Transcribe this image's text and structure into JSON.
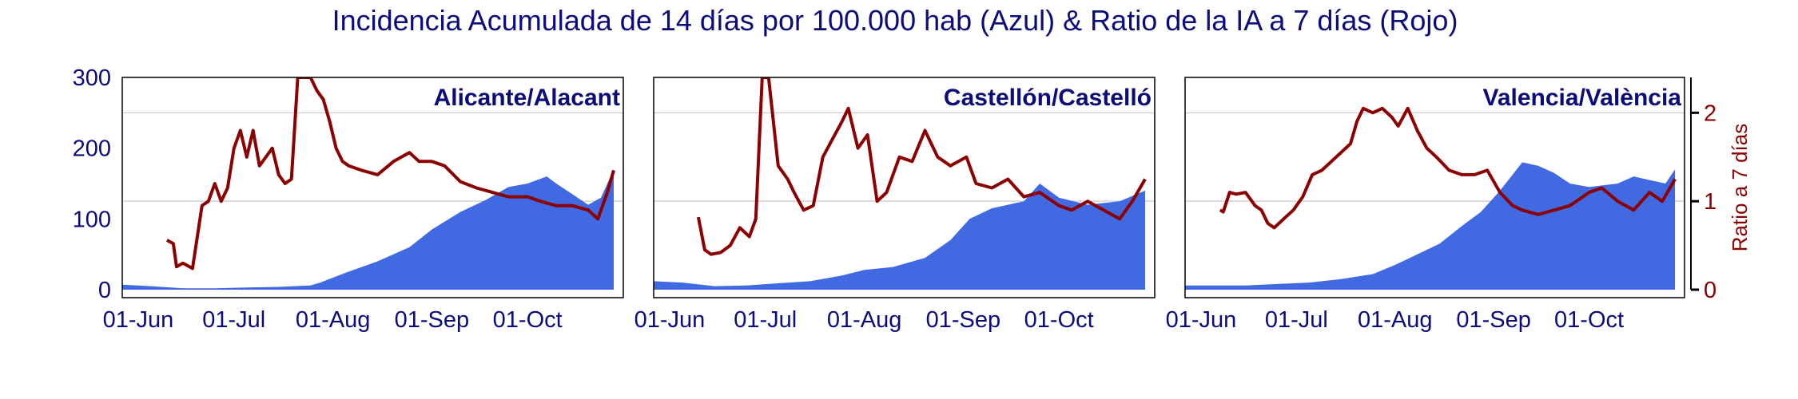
{
  "title": "Incidencia Acumulada de 14 días por 100.000 hab (Azul) & Ratio de la IA a 7 días (Rojo)",
  "colors": {
    "area": "#4169e1",
    "line": "#8b0000",
    "title": "#0b0b7a",
    "grid": "#d3d3d3"
  },
  "x_ticks": [
    "01-Jun",
    "01-Jul",
    "01-Aug",
    "01-Sep",
    "01-Oct"
  ],
  "y_left_ticks": [
    "0",
    "100",
    "200",
    "300"
  ],
  "y_right_ticks": [
    "0",
    "1",
    "2"
  ],
  "y_right_label": "Ratio a 7 días",
  "chart_data": [
    {
      "type": "area+line",
      "panel_title": "Alicante/Alacant",
      "x_range": [
        "2020-05-27",
        "2020-10-31"
      ],
      "ylim_left": [
        0,
        300
      ],
      "ylim_right": [
        0,
        2.4
      ],
      "incidence": {
        "x": [
          "2020-05-27",
          "2020-06-05",
          "2020-06-15",
          "2020-06-25",
          "2020-07-05",
          "2020-07-15",
          "2020-07-25",
          "2020-07-28",
          "2020-08-05",
          "2020-08-15",
          "2020-08-25",
          "2020-09-01",
          "2020-09-10",
          "2020-09-18",
          "2020-09-25",
          "2020-10-01",
          "2020-10-07",
          "2020-10-10",
          "2020-10-15",
          "2020-10-20",
          "2020-10-24",
          "2020-10-28"
        ],
        "values": [
          7,
          5,
          2,
          2,
          3,
          4,
          6,
          10,
          24,
          40,
          60,
          85,
          110,
          127,
          145,
          150,
          160,
          150,
          135,
          120,
          130,
          170
        ]
      },
      "ratio": {
        "x": [
          "2020-06-10",
          "2020-06-12",
          "2020-06-13",
          "2020-06-15",
          "2020-06-18",
          "2020-06-21",
          "2020-06-23",
          "2020-06-25",
          "2020-06-27",
          "2020-06-29",
          "2020-07-01",
          "2020-07-03",
          "2020-07-05",
          "2020-07-07",
          "2020-07-09",
          "2020-07-11",
          "2020-07-13",
          "2020-07-15",
          "2020-07-17",
          "2020-07-19",
          "2020-07-21",
          "2020-07-22",
          "2020-07-25",
          "2020-07-27",
          "2020-07-29",
          "2020-07-31",
          "2020-08-02",
          "2020-08-04",
          "2020-08-06",
          "2020-08-10",
          "2020-08-15",
          "2020-08-20",
          "2020-08-25",
          "2020-08-28",
          "2020-09-01",
          "2020-09-05",
          "2020-09-10",
          "2020-09-15",
          "2020-09-20",
          "2020-09-25",
          "2020-10-01",
          "2020-10-05",
          "2020-10-10",
          "2020-10-15",
          "2020-10-20",
          "2020-10-23",
          "2020-10-26",
          "2020-10-28"
        ],
        "values": [
          0.56,
          0.52,
          0.26,
          0.3,
          0.24,
          0.95,
          1.0,
          1.2,
          1.0,
          1.15,
          1.6,
          1.8,
          1.5,
          1.8,
          1.4,
          1.5,
          1.6,
          1.3,
          1.2,
          1.25,
          2.4,
          2.4,
          2.4,
          2.25,
          2.15,
          1.9,
          1.6,
          1.45,
          1.4,
          1.35,
          1.3,
          1.45,
          1.55,
          1.45,
          1.45,
          1.4,
          1.22,
          1.15,
          1.1,
          1.05,
          1.05,
          1.0,
          0.95,
          0.95,
          0.9,
          0.8,
          1.1,
          1.35
        ]
      }
    },
    {
      "type": "area+line",
      "panel_title": "Castellón/Castelló",
      "x_range": [
        "2020-05-27",
        "2020-10-31"
      ],
      "ylim_left": [
        0,
        300
      ],
      "ylim_right": [
        0,
        2.4
      ],
      "incidence": {
        "x": [
          "2020-05-27",
          "2020-06-05",
          "2020-06-15",
          "2020-06-25",
          "2020-07-05",
          "2020-07-15",
          "2020-07-25",
          "2020-08-01",
          "2020-08-10",
          "2020-08-20",
          "2020-08-28",
          "2020-09-03",
          "2020-09-10",
          "2020-09-20",
          "2020-09-25",
          "2020-10-01",
          "2020-10-10",
          "2020-10-20",
          "2020-10-28"
        ],
        "values": [
          12,
          10,
          5,
          6,
          9,
          12,
          20,
          28,
          32,
          45,
          70,
          100,
          115,
          125,
          150,
          130,
          120,
          125,
          140
        ]
      },
      "ratio": {
        "x": [
          "2020-06-10",
          "2020-06-12",
          "2020-06-14",
          "2020-06-17",
          "2020-06-20",
          "2020-06-23",
          "2020-06-26",
          "2020-06-28",
          "2020-06-30",
          "2020-07-02",
          "2020-07-05",
          "2020-07-08",
          "2020-07-10",
          "2020-07-13",
          "2020-07-16",
          "2020-07-19",
          "2020-07-22",
          "2020-07-25",
          "2020-07-27",
          "2020-07-30",
          "2020-08-02",
          "2020-08-05",
          "2020-08-08",
          "2020-08-12",
          "2020-08-16",
          "2020-08-20",
          "2020-08-24",
          "2020-08-28",
          "2020-09-02",
          "2020-09-05",
          "2020-09-10",
          "2020-09-15",
          "2020-09-20",
          "2020-09-25",
          "2020-10-01",
          "2020-10-05",
          "2020-10-10",
          "2020-10-15",
          "2020-10-20",
          "2020-10-24",
          "2020-10-28"
        ],
        "values": [
          0.82,
          0.45,
          0.4,
          0.42,
          0.5,
          0.7,
          0.6,
          0.8,
          2.4,
          2.4,
          1.4,
          1.25,
          1.1,
          0.9,
          0.95,
          1.5,
          1.7,
          1.9,
          2.05,
          1.6,
          1.75,
          1.0,
          1.1,
          1.5,
          1.45,
          1.8,
          1.5,
          1.4,
          1.5,
          1.2,
          1.15,
          1.25,
          1.05,
          1.1,
          0.95,
          0.9,
          1.0,
          0.9,
          0.8,
          1.0,
          1.25
        ]
      }
    },
    {
      "type": "area+line",
      "panel_title": "Valencia/València",
      "x_range": [
        "2020-05-27",
        "2020-10-31"
      ],
      "ylim_left": [
        0,
        300
      ],
      "ylim_right": [
        0,
        2.4
      ],
      "incidence": {
        "x": [
          "2020-05-27",
          "2020-06-05",
          "2020-06-15",
          "2020-06-25",
          "2020-07-05",
          "2020-07-15",
          "2020-07-25",
          "2020-08-01",
          "2020-08-08",
          "2020-08-15",
          "2020-08-22",
          "2020-08-28",
          "2020-09-03",
          "2020-09-10",
          "2020-09-15",
          "2020-09-20",
          "2020-09-25",
          "2020-10-01",
          "2020-10-10",
          "2020-10-15",
          "2020-10-20",
          "2020-10-25",
          "2020-10-28"
        ],
        "values": [
          6,
          6,
          6,
          8,
          10,
          15,
          22,
          35,
          50,
          65,
          90,
          110,
          140,
          180,
          175,
          165,
          150,
          145,
          150,
          160,
          155,
          150,
          170
        ]
      },
      "ratio": {
        "x": [
          "2020-06-07",
          "2020-06-08",
          "2020-06-10",
          "2020-06-12",
          "2020-06-15",
          "2020-06-18",
          "2020-06-20",
          "2020-06-22",
          "2020-06-24",
          "2020-06-27",
          "2020-06-30",
          "2020-07-03",
          "2020-07-06",
          "2020-07-09",
          "2020-07-12",
          "2020-07-15",
          "2020-07-18",
          "2020-07-20",
          "2020-07-22",
          "2020-07-25",
          "2020-07-28",
          "2020-07-31",
          "2020-08-02",
          "2020-08-05",
          "2020-08-08",
          "2020-08-11",
          "2020-08-14",
          "2020-08-18",
          "2020-08-22",
          "2020-08-26",
          "2020-08-30",
          "2020-09-03",
          "2020-09-07",
          "2020-09-10",
          "2020-09-15",
          "2020-09-20",
          "2020-09-25",
          "2020-10-01",
          "2020-10-05",
          "2020-10-10",
          "2020-10-15",
          "2020-10-20",
          "2020-10-24",
          "2020-10-28"
        ],
        "values": [
          0.9,
          0.88,
          1.1,
          1.08,
          1.1,
          0.95,
          0.9,
          0.75,
          0.7,
          0.8,
          0.9,
          1.05,
          1.3,
          1.35,
          1.45,
          1.55,
          1.65,
          1.9,
          2.05,
          2.0,
          2.05,
          1.95,
          1.85,
          2.05,
          1.8,
          1.6,
          1.5,
          1.35,
          1.3,
          1.3,
          1.35,
          1.1,
          0.95,
          0.9,
          0.85,
          0.9,
          0.95,
          1.1,
          1.15,
          1.0,
          0.9,
          1.1,
          1.0,
          1.25
        ]
      }
    }
  ]
}
